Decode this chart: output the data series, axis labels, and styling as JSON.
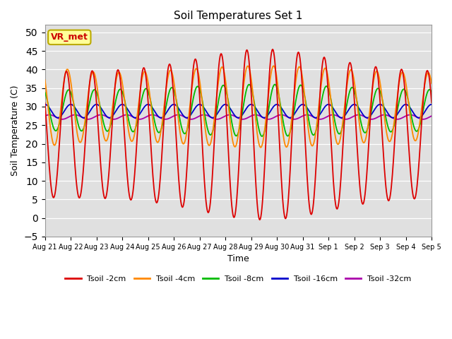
{
  "title": "Soil Temperatures Set 1",
  "xlabel": "Time",
  "ylabel": "Soil Temperature (C)",
  "ylim": [
    -5,
    52
  ],
  "yticks": [
    -5,
    0,
    5,
    10,
    15,
    20,
    25,
    30,
    35,
    40,
    45,
    50
  ],
  "bg_color": "#e8e8e8",
  "line_colors": {
    "2cm": "#dd0000",
    "4cm": "#ff8800",
    "8cm": "#00bb00",
    "16cm": "#0000cc",
    "32cm": "#aa00aa"
  },
  "legend_labels": [
    "Tsoil -2cm",
    "Tsoil -4cm",
    "Tsoil -8cm",
    "Tsoil -16cm",
    "Tsoil -32cm"
  ],
  "annotation_text": "VR_met",
  "annotation_color": "#cc0000",
  "annotation_bg": "#ffff99",
  "annotation_edge": "#bbaa00",
  "tick_labels": [
    "Aug 21",
    "Aug 22",
    "Aug 23",
    "Aug 24",
    "Aug 25",
    "Aug 26",
    "Aug 27",
    "Aug 28",
    "Aug 29",
    "Aug 30",
    "Aug 31",
    "Sep 1",
    "Sep 2",
    "Sep 3",
    "Sep 4",
    "Sep 5"
  ]
}
